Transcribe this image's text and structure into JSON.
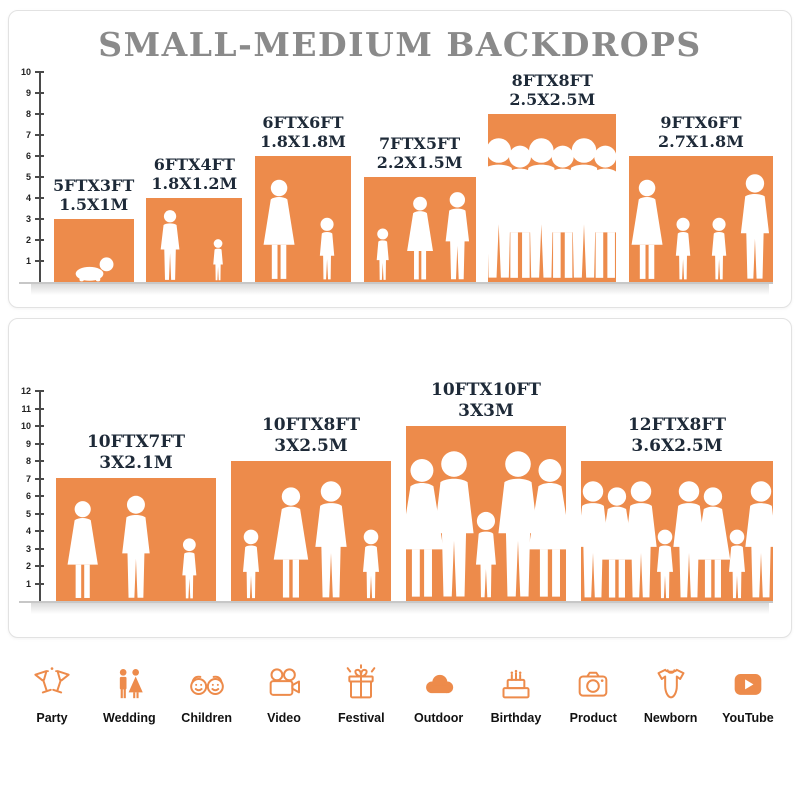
{
  "title": "SMALL-MEDIUM BACKDROPS",
  "panels": [
    {
      "name": "small-medium-sizes",
      "ruler_max": 10,
      "unit": "ft",
      "bars": [
        {
          "size_ft": "5FTX3FT",
          "size_m": "1.5X1M",
          "width_ft": 5,
          "height_ft": 3,
          "people": [
            "baby"
          ]
        },
        {
          "size_ft": "6FTX4FT",
          "size_m": "1.8X1.2M",
          "width_ft": 6,
          "height_ft": 4,
          "people": [
            "man",
            "child"
          ]
        },
        {
          "size_ft": "6FTX6FT",
          "size_m": "1.8X1.8M",
          "width_ft": 6,
          "height_ft": 6,
          "people": [
            "woman",
            "child"
          ]
        },
        {
          "size_ft": "7FTX5FT",
          "size_m": "2.2X1.5M",
          "width_ft": 7,
          "height_ft": 5,
          "people": [
            "child",
            "woman",
            "man"
          ]
        },
        {
          "size_ft": "8FTX8FT",
          "size_m": "2.5X2.5M",
          "width_ft": 8,
          "height_ft": 8,
          "people": [
            "man",
            "woman",
            "man",
            "woman",
            "man",
            "woman"
          ]
        },
        {
          "size_ft": "9FTX6FT",
          "size_m": "2.7X1.8M",
          "width_ft": 9,
          "height_ft": 6,
          "people": [
            "woman",
            "child",
            "child",
            "man"
          ]
        }
      ]
    },
    {
      "name": "large-sizes",
      "ruler_max": 12,
      "unit": "ft",
      "bars": [
        {
          "size_ft": "10FTX7FT",
          "size_m": "3X2.1M",
          "width_ft": 10,
          "height_ft": 7,
          "people": [
            "woman",
            "man",
            "child"
          ]
        },
        {
          "size_ft": "10FTX8FT",
          "size_m": "3X2.5M",
          "width_ft": 10,
          "height_ft": 8,
          "people": [
            "child",
            "woman",
            "man",
            "child"
          ]
        },
        {
          "size_ft": "10FTX10FT",
          "size_m": "3X3M",
          "width_ft": 10,
          "height_ft": 10,
          "people": [
            "woman",
            "man",
            "child",
            "man",
            "woman"
          ]
        },
        {
          "size_ft": "12FTX8FT",
          "size_m": "3.6X2.5M",
          "width_ft": 12,
          "height_ft": 8,
          "people": [
            "man",
            "woman",
            "man",
            "child",
            "man",
            "woman",
            "child",
            "man"
          ]
        }
      ]
    }
  ],
  "categories": [
    {
      "label": "Party",
      "icon": "party-icon"
    },
    {
      "label": "Wedding",
      "icon": "wedding-icon"
    },
    {
      "label": "Children",
      "icon": "children-icon"
    },
    {
      "label": "Video",
      "icon": "video-icon"
    },
    {
      "label": "Festival",
      "icon": "festival-icon"
    },
    {
      "label": "Outdoor",
      "icon": "outdoor-icon"
    },
    {
      "label": "Birthday",
      "icon": "birthday-icon"
    },
    {
      "label": "Product",
      "icon": "product-icon"
    },
    {
      "label": "Newborn",
      "icon": "newborn-icon"
    },
    {
      "label": "YouTube",
      "icon": "youtube-icon"
    }
  ],
  "colors": {
    "bar": "#ED8B4B",
    "title": "#8A8A8A",
    "bar_label": "#1E2A38",
    "icon": "#ED8B4B",
    "category_label": "#111111"
  }
}
